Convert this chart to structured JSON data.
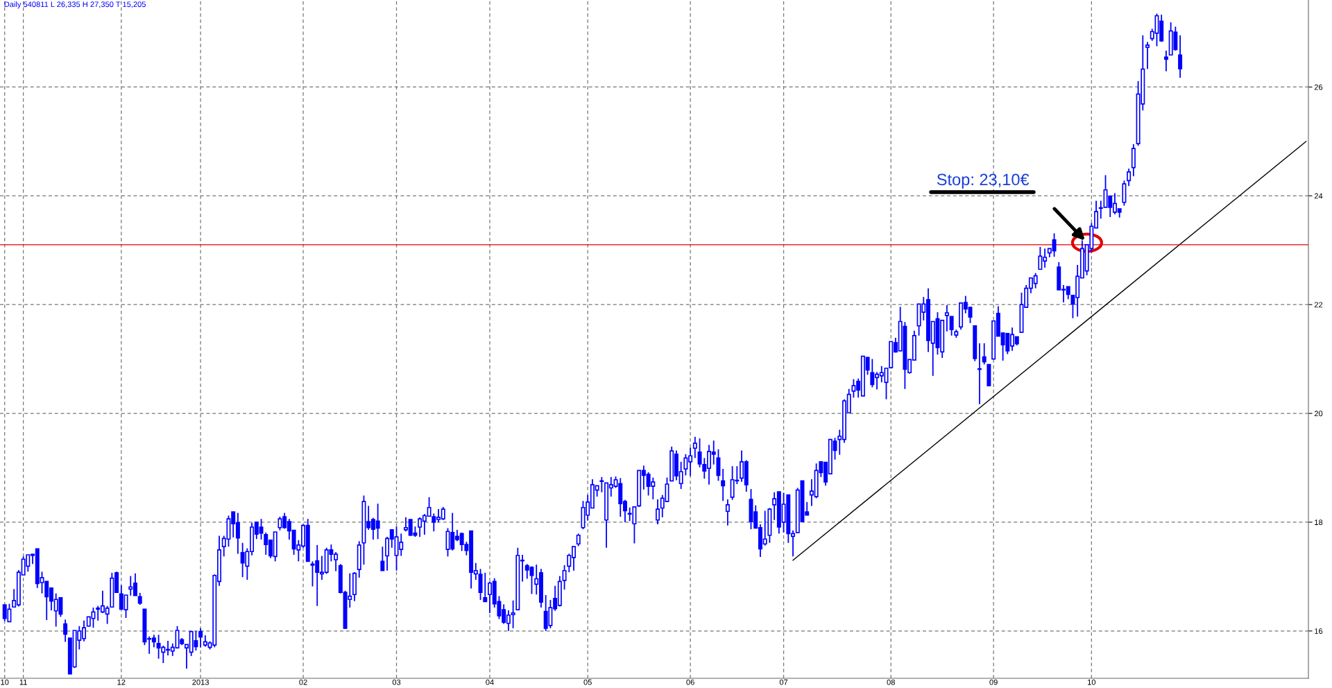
{
  "chart_data": {
    "type": "candlestick",
    "title": "Daily 540811 L 26,335 H 27,350 T 15,205",
    "color": "#0000ff",
    "categories": [
      "10",
      null,
      null,
      null,
      "11",
      null,
      null,
      null,
      null,
      null,
      null,
      null,
      null,
      null,
      null,
      null,
      null,
      null,
      null,
      null,
      null,
      null,
      null,
      null,
      null,
      "12",
      null,
      null,
      null,
      null,
      null,
      null,
      null,
      null,
      null,
      null,
      null,
      null,
      null,
      null,
      null,
      null,
      "2013",
      null,
      null,
      null,
      null,
      null,
      null,
      null,
      null,
      null,
      null,
      null,
      null,
      null,
      null,
      null,
      null,
      null,
      null,
      null,
      null,
      null,
      "02",
      null,
      null,
      null,
      null,
      null,
      null,
      null,
      null,
      null,
      null,
      null,
      null,
      null,
      null,
      null,
      null,
      null,
      null,
      null,
      "03",
      null,
      null,
      null,
      null,
      null,
      null,
      null,
      null,
      null,
      null,
      null,
      null,
      null,
      null,
      null,
      null,
      null,
      null,
      null,
      "04",
      null,
      null,
      null,
      null,
      null,
      null,
      null,
      null,
      null,
      null,
      null,
      null,
      null,
      null,
      null,
      null,
      null,
      null,
      null,
      null,
      "05",
      null,
      null,
      null,
      null,
      null,
      null,
      null,
      null,
      null,
      null,
      null,
      null,
      null,
      null,
      null,
      null,
      null,
      null,
      null,
      null,
      null,
      "06",
      null,
      null,
      null,
      null,
      null,
      null,
      null,
      null,
      null,
      null,
      null,
      null,
      null,
      null,
      null,
      null,
      null,
      null,
      null,
      "07",
      null,
      null,
      null,
      null,
      null,
      null,
      null,
      null,
      null,
      null,
      null,
      null,
      null,
      null,
      null,
      null,
      null,
      null,
      null,
      null,
      null,
      null,
      "08",
      null,
      null,
      null,
      null,
      null,
      null,
      null,
      null,
      null,
      null,
      null,
      null,
      null,
      null,
      null,
      null,
      null,
      null,
      null,
      null,
      null,
      "09",
      null,
      null,
      null,
      null,
      null,
      null,
      null,
      null,
      null,
      null,
      null,
      null,
      null,
      null,
      null,
      null,
      null,
      null,
      null,
      null,
      "10",
      null,
      null,
      null,
      null,
      null,
      null,
      null,
      null,
      null,
      null,
      null,
      null,
      null,
      null,
      null,
      null,
      null,
      null,
      null,
      null,
      null,
      null,
      null,
      null,
      null,
      null,
      null,
      null,
      null,
      null,
      null,
      null,
      null,
      null,
      null,
      null,
      null,
      null,
      null,
      null,
      null,
      null,
      null,
      null,
      null,
      null
    ],
    "ohlc": [
      [
        16.48,
        16.48,
        16.18,
        16.23
      ],
      [
        16.17,
        16.5,
        16.17,
        16.4
      ],
      [
        16.44,
        16.77,
        16.44,
        16.56
      ],
      [
        16.48,
        17.12,
        16.45,
        17.08
      ],
      [
        17.03,
        17.37,
        17.03,
        17.32
      ],
      [
        17.19,
        17.4,
        17.09,
        17.4
      ],
      [
        17.39,
        17.41,
        17.23,
        17.41
      ],
      [
        17.51,
        17.51,
        16.79,
        16.87
      ],
      [
        16.89,
        17.09,
        16.69,
        16.98
      ],
      [
        16.91,
        16.91,
        16.2,
        16.63
      ],
      [
        16.79,
        16.79,
        16.38,
        16.55
      ],
      [
        16.37,
        16.69,
        16.08,
        16.58
      ],
      [
        16.61,
        16.61,
        16.26,
        16.31
      ],
      [
        16.13,
        16.21,
        15.8,
        15.94
      ],
      [
        15.87,
        15.87,
        15.205,
        15.21
      ],
      [
        15.34,
        16.01,
        15.32,
        16.01
      ],
      [
        15.83,
        16.09,
        15.66,
        16.0
      ],
      [
        15.86,
        16.19,
        15.81,
        16.06
      ],
      [
        16.09,
        16.26,
        16.08,
        16.26
      ],
      [
        16.23,
        16.43,
        16.06,
        16.35
      ],
      [
        16.4,
        16.46,
        16.19,
        16.42
      ],
      [
        16.35,
        16.74,
        16.33,
        16.46
      ],
      [
        16.31,
        16.46,
        16.13,
        16.42
      ],
      [
        16.44,
        17.07,
        16.44,
        16.97
      ],
      [
        17.07,
        17.09,
        16.71,
        16.71
      ],
      [
        16.68,
        16.84,
        16.4,
        16.4
      ],
      [
        16.39,
        16.66,
        16.24,
        16.66
      ],
      [
        16.77,
        17.01,
        16.65,
        16.81
      ],
      [
        16.88,
        17.06,
        16.65,
        16.65
      ],
      [
        16.63,
        16.7,
        16.48,
        16.51
      ],
      [
        16.4,
        16.4,
        15.74,
        15.8
      ],
      [
        15.85,
        15.9,
        15.58,
        15.86
      ],
      [
        15.87,
        15.93,
        15.7,
        15.8
      ],
      [
        15.77,
        15.93,
        15.49,
        15.69
      ],
      [
        15.61,
        15.73,
        15.41,
        15.7
      ],
      [
        15.65,
        15.82,
        15.55,
        15.66
      ],
      [
        15.63,
        15.77,
        15.54,
        15.7
      ],
      [
        15.69,
        16.09,
        15.69,
        16.01
      ],
      [
        15.84,
        15.87,
        15.74,
        15.77
      ],
      [
        15.69,
        15.75,
        15.31,
        15.75
      ],
      [
        15.61,
        16.0,
        15.54,
        15.99
      ],
      [
        15.82,
        16.0,
        15.64,
        15.71
      ],
      [
        15.99,
        16.05,
        15.7,
        15.89
      ],
      [
        15.74,
        15.92,
        15.71,
        15.8
      ],
      [
        15.7,
        15.81,
        15.66,
        15.78
      ],
      [
        15.74,
        17.04,
        15.7,
        17.02
      ],
      [
        16.91,
        17.75,
        16.83,
        17.49
      ],
      [
        17.55,
        17.75,
        17.37,
        17.7
      ],
      [
        17.69,
        18.12,
        17.55,
        18.06
      ],
      [
        18.19,
        18.19,
        17.72,
        17.97
      ],
      [
        17.99,
        18.17,
        17.42,
        17.71
      ],
      [
        17.44,
        17.62,
        16.99,
        17.25
      ],
      [
        17.19,
        17.52,
        16.94,
        17.46
      ],
      [
        17.46,
        17.99,
        17.39,
        17.91
      ],
      [
        18.0,
        18.0,
        17.69,
        17.78
      ],
      [
        17.91,
        18.06,
        17.68,
        17.8
      ],
      [
        17.77,
        17.81,
        17.4,
        17.59
      ],
      [
        17.67,
        17.67,
        17.34,
        17.38
      ],
      [
        17.37,
        17.82,
        17.28,
        17.82
      ],
      [
        17.9,
        18.1,
        17.85,
        18.06
      ],
      [
        18.1,
        18.17,
        17.88,
        17.9
      ],
      [
        18.01,
        18.06,
        17.68,
        17.84
      ],
      [
        17.85,
        17.85,
        17.4,
        17.51
      ],
      [
        17.49,
        17.67,
        17.28,
        17.58
      ],
      [
        17.56,
        17.96,
        17.53,
        17.94
      ],
      [
        17.94,
        18.06,
        17.28,
        17.28
      ],
      [
        17.23,
        17.28,
        16.82,
        17.21
      ],
      [
        17.29,
        17.58,
        16.46,
        17.08
      ],
      [
        17.05,
        17.38,
        16.94,
        17.08
      ],
      [
        17.08,
        17.53,
        17.05,
        17.49
      ],
      [
        17.49,
        17.59,
        17.28,
        17.41
      ],
      [
        17.31,
        17.45,
        17.1,
        17.41
      ],
      [
        17.2,
        17.23,
        16.69,
        16.71
      ],
      [
        16.71,
        16.74,
        16.04,
        16.05
      ],
      [
        16.58,
        17.06,
        16.43,
        16.64
      ],
      [
        16.67,
        17.08,
        16.55,
        17.06
      ],
      [
        17.13,
        17.65,
        16.98,
        17.58
      ],
      [
        17.62,
        18.49,
        17.22,
        18.38
      ],
      [
        18.01,
        18.3,
        17.86,
        17.9
      ],
      [
        18.05,
        18.08,
        17.68,
        17.87
      ],
      [
        18.02,
        18.34,
        17.69,
        17.89
      ],
      [
        17.28,
        17.55,
        17.11,
        17.11
      ],
      [
        17.38,
        17.73,
        17.11,
        17.7
      ],
      [
        17.86,
        17.87,
        17.53,
        17.69
      ],
      [
        17.39,
        17.92,
        17.11,
        17.73
      ],
      [
        17.5,
        17.79,
        17.38,
        17.63
      ],
      [
        17.86,
        18.09,
        17.83,
        17.9
      ],
      [
        18.05,
        18.05,
        17.75,
        17.76
      ],
      [
        17.8,
        17.92,
        17.73,
        17.76
      ],
      [
        17.91,
        18.09,
        17.73,
        18.06
      ],
      [
        18.02,
        18.15,
        17.77,
        18.12
      ],
      [
        18.11,
        18.46,
        18.11,
        18.27
      ],
      [
        18.1,
        18.16,
        17.83,
        18.0
      ],
      [
        18.05,
        18.24,
        18.0,
        18.09
      ],
      [
        18.06,
        18.28,
        18.04,
        18.24
      ],
      [
        17.5,
        17.89,
        17.37,
        17.83
      ],
      [
        17.81,
        18.17,
        17.48,
        17.51
      ],
      [
        17.74,
        17.86,
        17.65,
        17.68
      ],
      [
        17.79,
        17.81,
        17.47,
        17.59
      ],
      [
        17.59,
        17.64,
        17.39,
        17.48
      ],
      [
        17.84,
        17.84,
        16.78,
        17.08
      ],
      [
        17.05,
        17.25,
        16.94,
        17.11
      ],
      [
        17.04,
        17.14,
        16.57,
        16.71
      ],
      [
        16.61,
        17.07,
        16.54,
        16.54
      ],
      [
        16.67,
        16.91,
        16.33,
        16.88
      ],
      [
        16.91,
        16.97,
        16.43,
        16.5
      ],
      [
        16.54,
        16.64,
        16.22,
        16.28
      ],
      [
        16.39,
        16.49,
        16.13,
        16.16
      ],
      [
        16.14,
        16.38,
        16.0,
        16.29
      ],
      [
        16.3,
        16.56,
        16.05,
        16.33
      ],
      [
        16.39,
        17.53,
        16.39,
        17.39
      ],
      [
        17.29,
        17.4,
        16.91,
        17.3
      ],
      [
        17.2,
        17.23,
        16.96,
        17.12
      ],
      [
        17.17,
        17.19,
        16.68,
        17.02
      ],
      [
        16.86,
        17.22,
        16.67,
        16.96
      ],
      [
        17.07,
        17.14,
        16.43,
        16.53
      ],
      [
        16.36,
        16.66,
        16.0,
        16.05
      ],
      [
        16.1,
        16.57,
        16.05,
        16.43
      ],
      [
        16.6,
        16.83,
        16.37,
        16.41
      ],
      [
        16.47,
        17.01,
        16.45,
        16.91
      ],
      [
        16.93,
        17.21,
        16.76,
        17.11
      ],
      [
        17.19,
        17.42,
        17.08,
        17.39
      ],
      [
        17.35,
        17.55,
        17.11,
        17.55
      ],
      [
        17.6,
        17.79,
        17.56,
        17.76
      ],
      [
        17.9,
        18.39,
        17.87,
        18.27
      ],
      [
        18.13,
        18.5,
        18.03,
        18.37
      ],
      [
        18.26,
        18.79,
        18.26,
        18.69
      ],
      [
        18.59,
        18.67,
        18.47,
        18.67
      ],
      [
        18.76,
        18.83,
        18.55,
        18.75
      ],
      [
        18.04,
        18.72,
        17.53,
        18.72
      ],
      [
        18.63,
        18.83,
        18.47,
        18.69
      ],
      [
        18.66,
        18.84,
        18.63,
        18.78
      ],
      [
        18.71,
        18.81,
        18.1,
        18.34
      ],
      [
        18.38,
        18.41,
        18.0,
        18.21
      ],
      [
        18.15,
        18.27,
        18.02,
        18.16
      ],
      [
        17.97,
        18.28,
        17.61,
        18.28
      ],
      [
        18.3,
        18.95,
        18.28,
        18.95
      ],
      [
        18.95,
        19.04,
        18.6,
        18.86
      ],
      [
        18.88,
        18.92,
        18.49,
        18.66
      ],
      [
        18.66,
        18.82,
        18.42,
        18.74
      ],
      [
        18.04,
        18.42,
        17.96,
        18.24
      ],
      [
        18.26,
        18.5,
        18.09,
        18.44
      ],
      [
        18.38,
        18.82,
        18.38,
        18.7
      ],
      [
        18.76,
        19.39,
        18.76,
        19.31
      ],
      [
        19.25,
        19.32,
        18.77,
        18.85
      ],
      [
        18.71,
        19.11,
        18.61,
        18.93
      ],
      [
        18.98,
        19.25,
        18.86,
        19.18
      ],
      [
        19.11,
        19.37,
        18.85,
        19.22
      ],
      [
        19.36,
        19.57,
        19.18,
        19.45
      ],
      [
        19.29,
        19.54,
        19.01,
        19.07
      ],
      [
        19.06,
        19.18,
        18.8,
        18.94
      ],
      [
        18.99,
        19.42,
        18.69,
        19.3
      ],
      [
        19.29,
        19.5,
        19.06,
        19.25
      ],
      [
        19.18,
        19.34,
        18.76,
        18.86
      ],
      [
        18.76,
        18.98,
        18.39,
        18.67
      ],
      [
        18.2,
        18.42,
        17.94,
        18.32
      ],
      [
        18.46,
        19.03,
        18.41,
        18.78
      ],
      [
        18.76,
        19.03,
        18.7,
        18.77
      ],
      [
        18.81,
        19.32,
        18.74,
        19.11
      ],
      [
        19.11,
        19.14,
        18.56,
        18.69
      ],
      [
        18.42,
        18.61,
        17.87,
        18.01
      ],
      [
        18.19,
        18.31,
        17.89,
        17.89
      ],
      [
        17.9,
        17.96,
        17.36,
        17.51
      ],
      [
        17.6,
        18.21,
        17.57,
        17.69
      ],
      [
        17.76,
        18.26,
        17.62,
        18.24
      ],
      [
        18.32,
        18.55,
        18.04,
        18.43
      ],
      [
        18.56,
        18.56,
        17.79,
        17.91
      ],
      [
        18.0,
        18.54,
        17.81,
        18.33
      ],
      [
        18.5,
        18.5,
        17.62,
        17.79
      ],
      [
        17.74,
        17.85,
        17.37,
        17.79
      ],
      [
        17.81,
        18.63,
        17.81,
        18.59
      ],
      [
        18.76,
        18.76,
        18.01,
        18.01
      ],
      [
        18.19,
        18.37,
        18.13,
        18.13
      ],
      [
        18.5,
        18.79,
        18.3,
        18.57
      ],
      [
        18.47,
        19.08,
        18.44,
        18.95
      ],
      [
        19.11,
        19.11,
        18.83,
        18.91
      ],
      [
        19.1,
        19.1,
        18.67,
        18.74
      ],
      [
        18.89,
        19.52,
        18.89,
        19.52
      ],
      [
        19.49,
        19.55,
        19.15,
        19.32
      ],
      [
        19.52,
        19.7,
        19.24,
        19.58
      ],
      [
        19.52,
        20.26,
        19.46,
        20.23
      ],
      [
        20.01,
        20.45,
        20.01,
        20.35
      ],
      [
        20.41,
        20.63,
        20.29,
        20.51
      ],
      [
        20.59,
        20.64,
        20.29,
        20.43
      ],
      [
        20.32,
        21.05,
        20.32,
        21.05
      ],
      [
        21.03,
        21.03,
        20.71,
        20.8
      ],
      [
        20.75,
        21.0,
        20.48,
        20.53
      ],
      [
        20.66,
        20.76,
        20.44,
        20.72
      ],
      [
        20.69,
        20.87,
        20.57,
        20.75
      ],
      [
        20.57,
        20.83,
        20.26,
        20.83
      ],
      [
        20.84,
        21.32,
        20.83,
        21.32
      ],
      [
        21.3,
        21.39,
        21.12,
        21.13
      ],
      [
        21.15,
        21.96,
        21.15,
        21.69
      ],
      [
        21.6,
        21.68,
        20.45,
        20.81
      ],
      [
        20.75,
        20.99,
        20.73,
        20.99
      ],
      [
        20.98,
        21.52,
        20.98,
        21.43
      ],
      [
        21.61,
        22.01,
        21.43,
        22.01
      ],
      [
        21.86,
        22.14,
        21.71,
        22.01
      ],
      [
        22.09,
        22.3,
        21.13,
        21.34
      ],
      [
        21.29,
        21.69,
        20.69,
        21.69
      ],
      [
        21.74,
        21.86,
        21.08,
        21.21
      ],
      [
        21.13,
        21.71,
        21.02,
        21.71
      ],
      [
        21.8,
        21.99,
        21.51,
        21.85
      ],
      [
        21.78,
        21.78,
        21.43,
        21.54
      ],
      [
        21.44,
        21.54,
        21.39,
        21.5
      ],
      [
        21.59,
        22.03,
        21.54,
        22.03
      ],
      [
        22.04,
        22.16,
        21.84,
        21.92
      ],
      [
        21.95,
        21.95,
        21.66,
        21.77
      ],
      [
        21.61,
        21.61,
        20.96,
        21.01
      ],
      [
        20.81,
        21.29,
        20.17,
        20.82
      ],
      [
        21.04,
        21.29,
        20.9,
        20.95
      ],
      [
        20.9,
        20.9,
        20.51,
        20.51
      ],
      [
        21.0,
        21.7,
        21.0,
        21.7
      ],
      [
        21.84,
        21.97,
        21.42,
        21.42
      ],
      [
        21.48,
        21.48,
        20.97,
        21.26
      ],
      [
        21.47,
        21.47,
        21.09,
        21.15
      ],
      [
        21.24,
        21.58,
        21.15,
        21.45
      ],
      [
        21.41,
        21.41,
        21.25,
        21.28
      ],
      [
        21.49,
        22.22,
        21.49,
        22.0
      ],
      [
        21.95,
        22.36,
        21.95,
        22.3
      ],
      [
        22.3,
        22.49,
        22.21,
        22.49
      ],
      [
        22.39,
        22.58,
        22.3,
        22.53
      ],
      [
        22.65,
        23.06,
        22.65,
        22.89
      ],
      [
        22.8,
        23.03,
        22.68,
        22.87
      ],
      [
        22.95,
        23.03,
        22.87,
        23.03
      ],
      [
        23.19,
        23.31,
        22.88,
        22.99
      ],
      [
        22.69,
        22.78,
        22.27,
        22.27
      ],
      [
        22.27,
        22.36,
        22.04,
        22.28
      ],
      [
        22.33,
        22.33,
        22.1,
        22.19
      ],
      [
        22.17,
        22.17,
        21.75,
        22.01
      ],
      [
        22.13,
        22.73,
        21.78,
        22.52
      ],
      [
        22.49,
        23.18,
        22.49,
        23.03
      ],
      [
        22.62,
        23.1,
        22.54,
        23.1
      ],
      [
        23.03,
        23.5,
        22.96,
        23.44
      ],
      [
        23.41,
        23.91,
        23.41,
        23.71
      ],
      [
        23.77,
        23.91,
        23.58,
        23.78
      ],
      [
        23.79,
        24.38,
        23.79,
        24.11
      ],
      [
        23.99,
        24.01,
        23.61,
        23.79
      ],
      [
        23.7,
        24.05,
        23.66,
        23.86
      ],
      [
        23.76,
        23.76,
        23.6,
        23.7
      ],
      [
        23.88,
        24.28,
        23.82,
        24.22
      ],
      [
        24.28,
        24.5,
        24.18,
        24.44
      ],
      [
        24.52,
        24.95,
        24.36,
        24.87
      ],
      [
        24.96,
        26.11,
        24.92,
        25.87
      ],
      [
        25.69,
        26.95,
        25.57,
        26.33
      ],
      [
        26.73,
        26.83,
        26.33,
        26.77
      ],
      [
        26.89,
        27.07,
        26.85,
        27.02
      ],
      [
        26.99,
        27.35,
        26.75,
        27.31
      ],
      [
        27.21,
        27.33,
        26.83,
        26.85
      ],
      [
        26.55,
        26.67,
        26.29,
        26.51
      ],
      [
        26.59,
        27.19,
        26.59,
        27.03
      ],
      [
        27.01,
        27.11,
        26.67,
        26.69
      ],
      [
        26.59,
        26.95,
        26.17,
        26.335
      ],
      null,
      null,
      null,
      null,
      null,
      null,
      null,
      null,
      null,
      null,
      null,
      null,
      null,
      null,
      null,
      null,
      null,
      null,
      null,
      null,
      null,
      null,
      null,
      null,
      null,
      null,
      null
    ],
    "series": [
      {
        "type": "line",
        "color": "#000000",
        "values": [
          null,
          null,
          null,
          null,
          null,
          null,
          null,
          null,
          null,
          null,
          null,
          null,
          null,
          null,
          null,
          null,
          null,
          null,
          null,
          null,
          null,
          null,
          null,
          null,
          null,
          null,
          null,
          null,
          null,
          null,
          null,
          null,
          null,
          null,
          null,
          null,
          null,
          null,
          null,
          null,
          null,
          null,
          null,
          null,
          null,
          null,
          null,
          null,
          null,
          null,
          null,
          null,
          null,
          null,
          null,
          null,
          null,
          null,
          null,
          null,
          null,
          null,
          null,
          null,
          null,
          null,
          null,
          null,
          null,
          null,
          null,
          null,
          null,
          null,
          null,
          null,
          null,
          null,
          null,
          null,
          null,
          null,
          null,
          null,
          null,
          null,
          null,
          null,
          null,
          null,
          null,
          null,
          null,
          null,
          null,
          null,
          null,
          null,
          null,
          null,
          null,
          null,
          null,
          null,
          null,
          null,
          null,
          null,
          null,
          null,
          null,
          null,
          null,
          null,
          null,
          null,
          null,
          null,
          null,
          null,
          null,
          null,
          null,
          null,
          null,
          null,
          null,
          null,
          null,
          null,
          null,
          null,
          null,
          null,
          null,
          null,
          null,
          null,
          null,
          null,
          null,
          null,
          null,
          null,
          null,
          null,
          null,
          null,
          null,
          null,
          null,
          null,
          null,
          null,
          null,
          null,
          null,
          null,
          null,
          null,
          null,
          null,
          null,
          null,
          null,
          null,
          null,
          null,
          null,
          17.3,
          null,
          null,
          null,
          null,
          null,
          null,
          null,
          null,
          null,
          null,
          null,
          null,
          null,
          null,
          null,
          null,
          null,
          null,
          null,
          null,
          null,
          null,
          null,
          null,
          null,
          null,
          null,
          null,
          null,
          null,
          null,
          null,
          null,
          null,
          null,
          null,
          null,
          null,
          null,
          null,
          null,
          null,
          null,
          null,
          null,
          null,
          null,
          null,
          null,
          null,
          null,
          null,
          null,
          null,
          null,
          null,
          null,
          null,
          null,
          null,
          null,
          null,
          null,
          null,
          null,
          null,
          null,
          null,
          null,
          null,
          null,
          null,
          null,
          null,
          null,
          null,
          null,
          null,
          null,
          null,
          null,
          null,
          null,
          null,
          null,
          null,
          null,
          null,
          null,
          null,
          null,
          null,
          null,
          null,
          null,
          null,
          null,
          null,
          null,
          null,
          null,
          null,
          null,
          null,
          null,
          null,
          null,
          null,
          null,
          25.0
        ]
      }
    ],
    "ref_lines": [
      {
        "axis": "y",
        "value": 23.1,
        "color": "#e00000"
      }
    ],
    "annotations": [
      "Stop: 23,10€"
    ],
    "ylim": [
      15.13,
      27.6
    ],
    "yticks": [
      16,
      18,
      20,
      22,
      24,
      26
    ],
    "grid": true
  }
}
